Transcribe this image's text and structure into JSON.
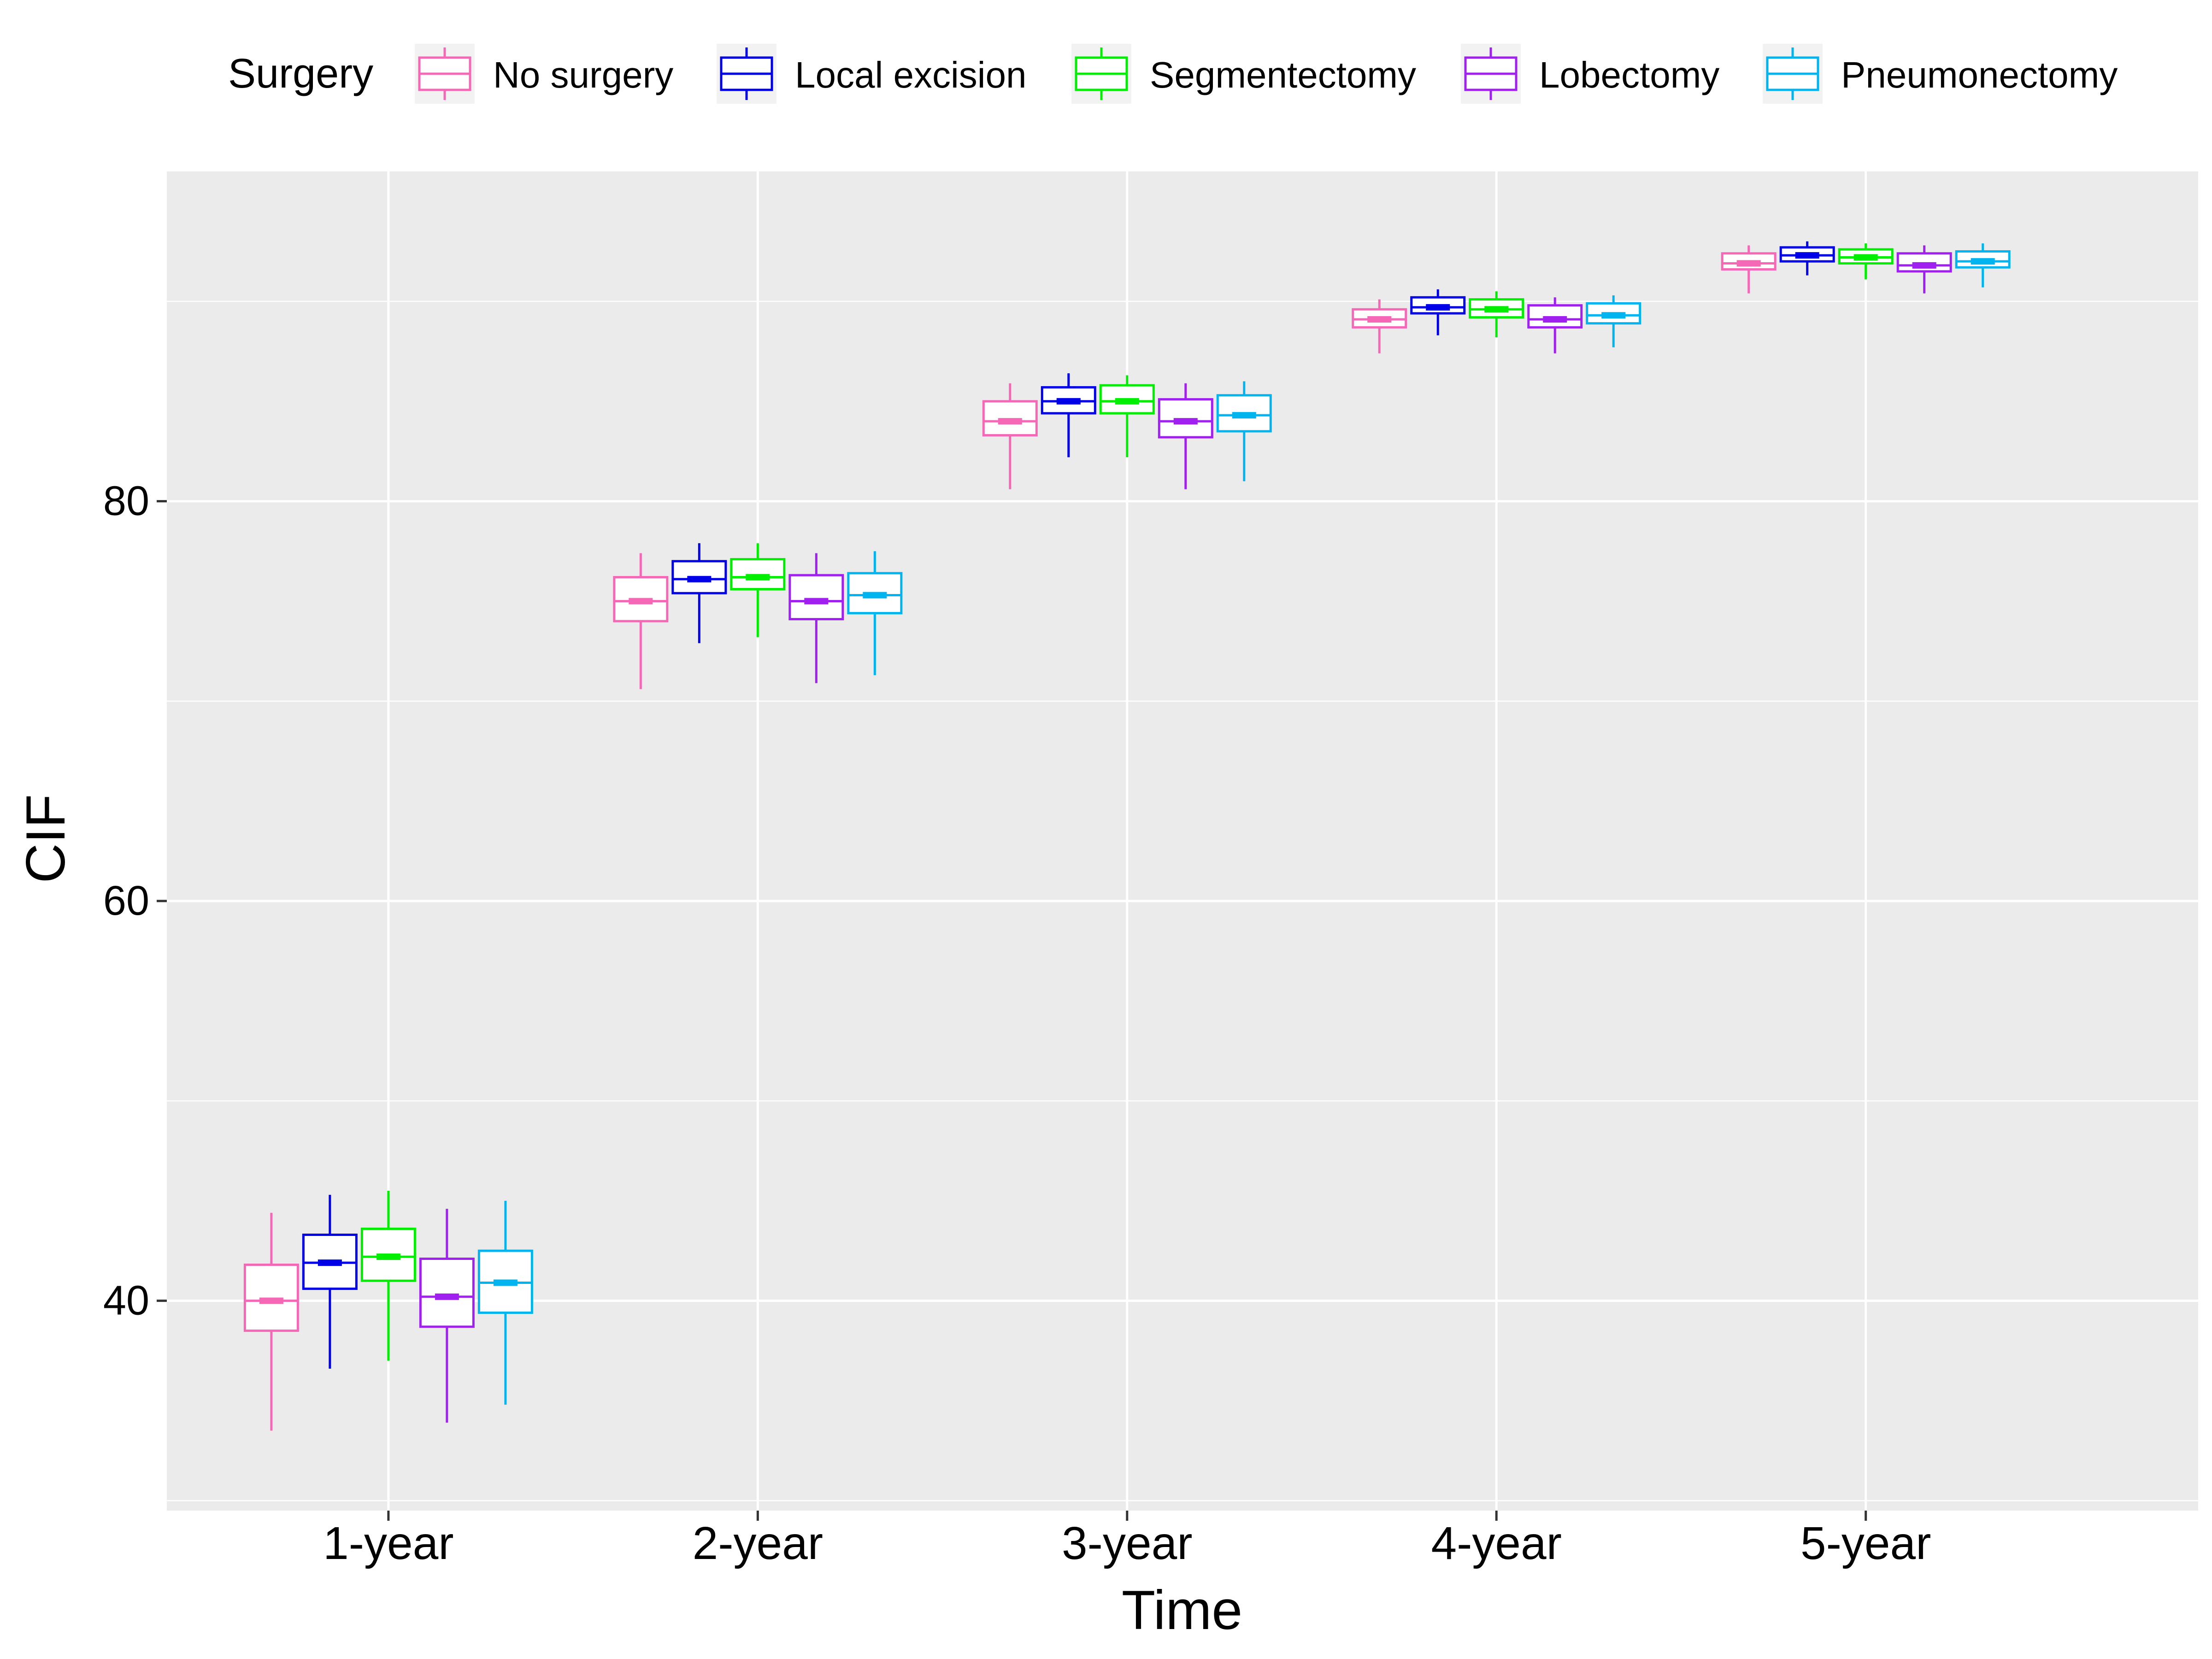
{
  "chart_data": {
    "type": "boxplot",
    "xlabel": "Time",
    "ylabel": "CIF",
    "categories": [
      "1-year",
      "2-year",
      "3-year",
      "4-year",
      "5-year"
    ],
    "y_ticks": [
      40,
      60,
      80
    ],
    "ylim": [
      29.5,
      96.5
    ],
    "grid": true,
    "legend": {
      "title": "Surgery",
      "placement": "top"
    },
    "series": [
      {
        "name": "No surgery",
        "color": "#F468B5",
        "boxes": [
          {
            "min": 33.5,
            "q1": 38.5,
            "median": 40.0,
            "q3": 41.8,
            "max": 44.4
          },
          {
            "min": 70.6,
            "q1": 74.0,
            "median": 75.0,
            "q3": 76.2,
            "max": 77.4
          },
          {
            "min": 80.6,
            "q1": 83.3,
            "median": 84.0,
            "q3": 85.0,
            "max": 85.9
          },
          {
            "min": 87.4,
            "q1": 88.7,
            "median": 89.1,
            "q3": 89.6,
            "max": 90.1
          },
          {
            "min": 90.4,
            "q1": 91.6,
            "median": 91.9,
            "q3": 92.4,
            "max": 92.8
          }
        ]
      },
      {
        "name": "Local excision",
        "color": "#0000E6",
        "boxes": [
          {
            "min": 36.6,
            "q1": 40.6,
            "median": 41.9,
            "q3": 43.3,
            "max": 45.3
          },
          {
            "min": 72.9,
            "q1": 75.4,
            "median": 76.1,
            "q3": 77.0,
            "max": 77.9
          },
          {
            "min": 82.2,
            "q1": 84.4,
            "median": 85.0,
            "q3": 85.7,
            "max": 86.4
          },
          {
            "min": 88.3,
            "q1": 89.4,
            "median": 89.7,
            "q3": 90.2,
            "max": 90.6
          },
          {
            "min": 91.3,
            "q1": 92.0,
            "median": 92.3,
            "q3": 92.7,
            "max": 93.0
          }
        ]
      },
      {
        "name": "Segmentectomy",
        "color": "#00EE00",
        "boxes": [
          {
            "min": 37.0,
            "q1": 41.0,
            "median": 42.2,
            "q3": 43.6,
            "max": 45.5
          },
          {
            "min": 73.2,
            "q1": 75.6,
            "median": 76.2,
            "q3": 77.1,
            "max": 77.9
          },
          {
            "min": 82.2,
            "q1": 84.4,
            "median": 85.0,
            "q3": 85.8,
            "max": 86.3
          },
          {
            "min": 88.2,
            "q1": 89.2,
            "median": 89.6,
            "q3": 90.1,
            "max": 90.5
          },
          {
            "min": 91.1,
            "q1": 91.9,
            "median": 92.2,
            "q3": 92.6,
            "max": 92.9
          }
        ]
      },
      {
        "name": "Lobectomy",
        "color": "#A020F0",
        "boxes": [
          {
            "min": 33.9,
            "q1": 38.7,
            "median": 40.2,
            "q3": 42.1,
            "max": 44.6
          },
          {
            "min": 70.9,
            "q1": 74.1,
            "median": 75.0,
            "q3": 76.3,
            "max": 77.4
          },
          {
            "min": 80.6,
            "q1": 83.2,
            "median": 84.0,
            "q3": 85.1,
            "max": 85.9
          },
          {
            "min": 87.4,
            "q1": 88.7,
            "median": 89.1,
            "q3": 89.8,
            "max": 90.2
          },
          {
            "min": 90.4,
            "q1": 91.5,
            "median": 91.8,
            "q3": 92.4,
            "max": 92.8
          }
        ]
      },
      {
        "name": "Pneumonectomy",
        "color": "#00B4F0",
        "boxes": [
          {
            "min": 34.8,
            "q1": 39.4,
            "median": 40.9,
            "q3": 42.5,
            "max": 45.0
          },
          {
            "min": 71.3,
            "q1": 74.4,
            "median": 75.3,
            "q3": 76.4,
            "max": 77.5
          },
          {
            "min": 81.0,
            "q1": 83.5,
            "median": 84.3,
            "q3": 85.3,
            "max": 86.0
          },
          {
            "min": 87.7,
            "q1": 88.9,
            "median": 89.3,
            "q3": 89.9,
            "max": 90.3
          },
          {
            "min": 90.7,
            "q1": 91.7,
            "median": 92.0,
            "q3": 92.5,
            "max": 92.9
          }
        ]
      }
    ]
  }
}
